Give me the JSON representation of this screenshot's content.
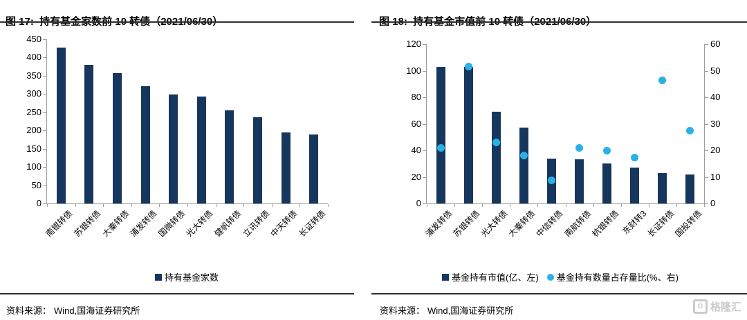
{
  "colors": {
    "bar": "#17365d",
    "dot": "#2ab0e8",
    "axis": "#9c9c9c",
    "rule": "#2e2e2e",
    "watermark": "#cbcbcb"
  },
  "chart_data": [
    {
      "type": "bar",
      "title": "图 17:  持有基金家数前 10 转债（2021/06/30）",
      "categories": [
        "南银转债",
        "苏银转债",
        "大秦转债",
        "浦发转债",
        "国微转债",
        "光大转债",
        "健帆转债",
        "立讯转债",
        "中天转债",
        "长证转债"
      ],
      "series": [
        {
          "name": "持有基金家数",
          "type": "bar",
          "axis": "left",
          "values": [
            428,
            380,
            357,
            322,
            299,
            294,
            256,
            237,
            194,
            189
          ]
        }
      ],
      "ylim_left": [
        0,
        450
      ],
      "ytick_step_left": 50,
      "grid": false,
      "legend_position": "bottom"
    },
    {
      "type": "bar+scatter",
      "title": "图 18:  持有基金市值前 10 转债（2021/06/30）",
      "categories": [
        "浦发转债",
        "苏银转债",
        "光大转债",
        "大秦转债",
        "中信转债",
        "南航转债",
        "杭银转债",
        "东财转3",
        "长证转债",
        "国投转债"
      ],
      "series": [
        {
          "name": "基金持有市值(亿、左)",
          "type": "bar",
          "axis": "left",
          "values": [
            103,
            103,
            69,
            57,
            34,
            33,
            30,
            27,
            23,
            22
          ]
        },
        {
          "name": "基金持有数量占存量比(%、右)",
          "type": "scatter",
          "axis": "right",
          "values": [
            20.8,
            51.5,
            23,
            18,
            8.7,
            21,
            20,
            17.3,
            46.3,
            27.3
          ]
        }
      ],
      "ylim_left": [
        0,
        120
      ],
      "ytick_step_left": 20,
      "ylim_right": [
        0,
        60
      ],
      "ytick_step_right": 10,
      "grid": false,
      "legend_position": "bottom"
    }
  ],
  "panels": [
    {
      "source_label": "资料来源：",
      "source_value": "Wind,国海证券研究所"
    },
    {
      "source_label": "资料来源：",
      "source_value": "Wind,国海证券研究所"
    }
  ],
  "watermark": {
    "icon_letter": "G",
    "text": "格隆汇"
  }
}
